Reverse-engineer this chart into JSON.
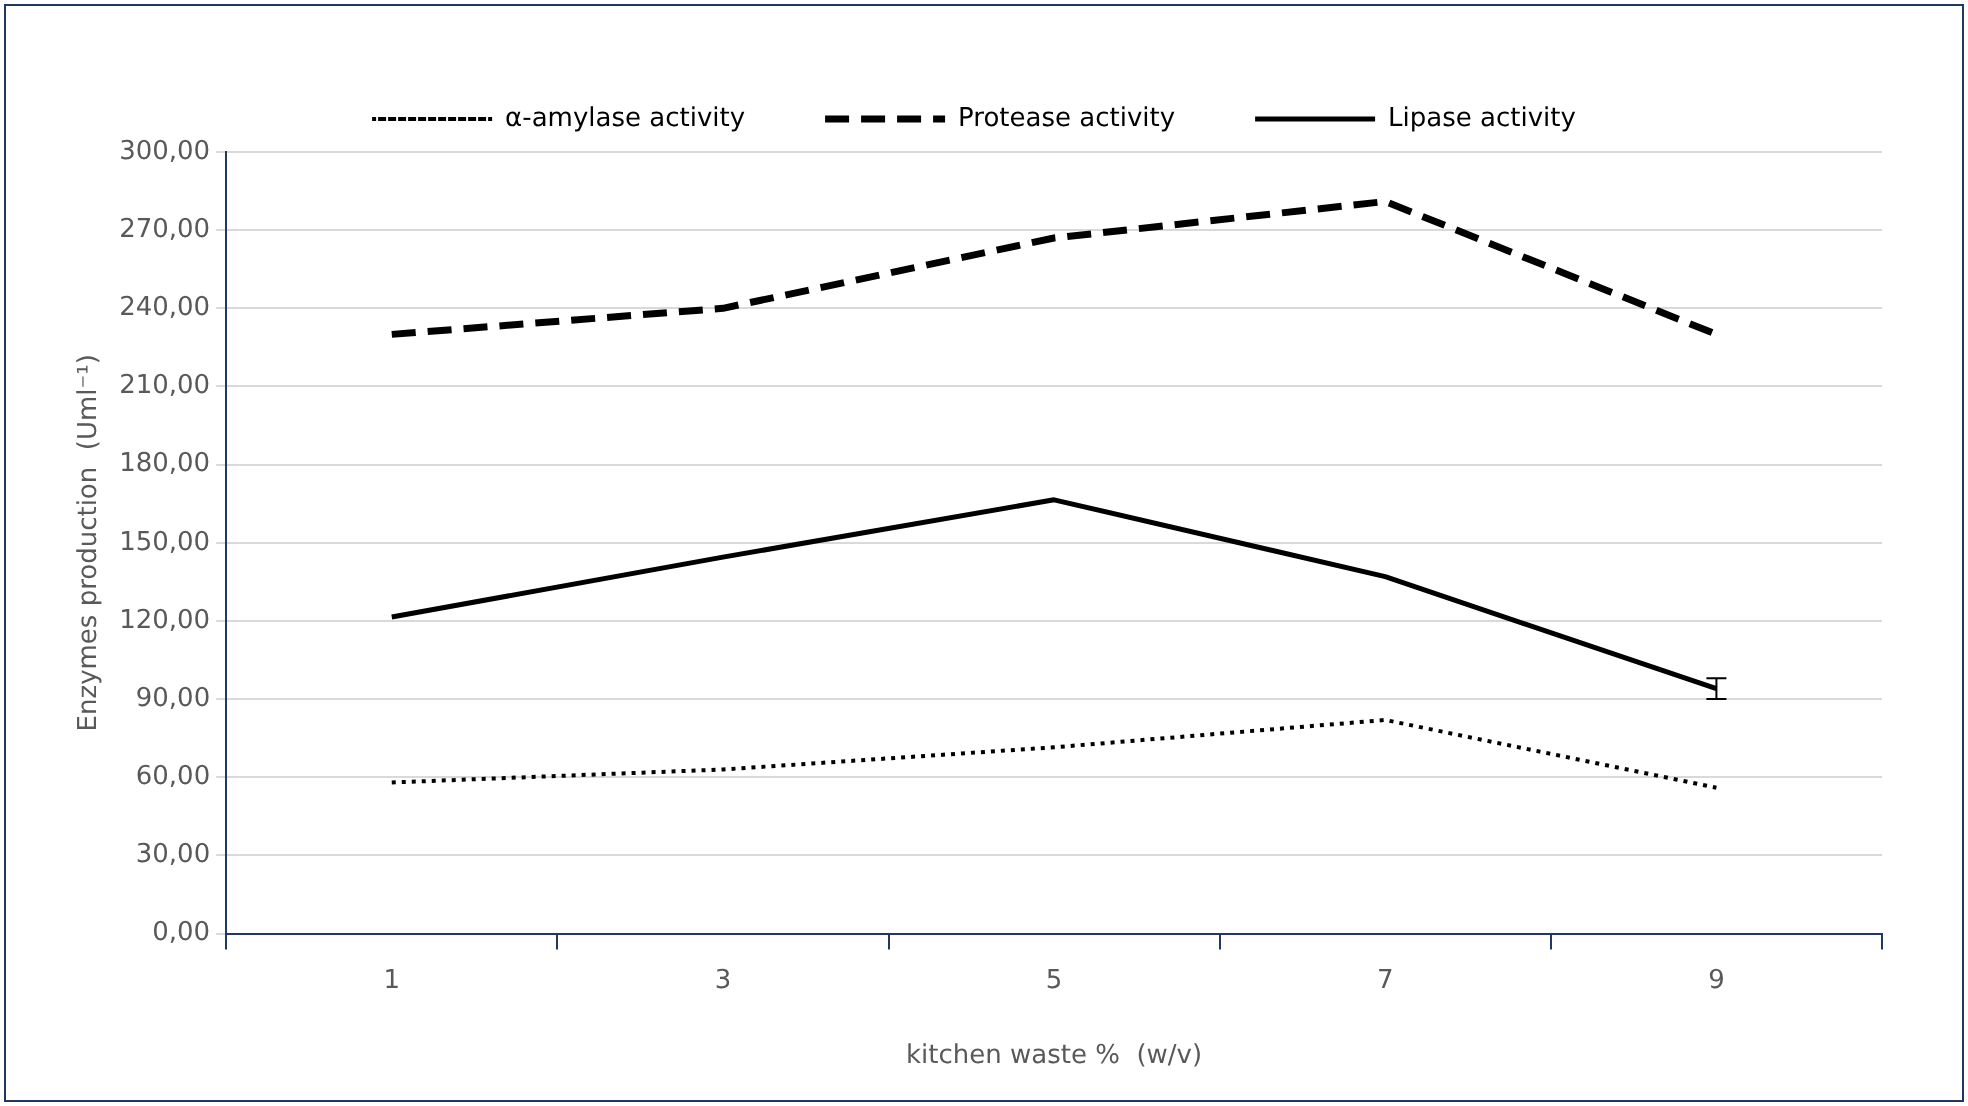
{
  "chart_data": {
    "type": "line",
    "xlabel": "kitchen waste %  (w/v)",
    "ylabel": "Enzymes production  (Uml⁻¹)",
    "categories": [
      "1",
      "3",
      "5",
      "7",
      "9"
    ],
    "series": [
      {
        "name": "α-amylase activity",
        "color": "#000000",
        "line_style": "dotted",
        "values": [
          58,
          63,
          71.5,
          82,
          56
        ]
      },
      {
        "name": "Protease activity",
        "color": "#000000",
        "line_style": "dashed",
        "values": [
          230,
          240,
          267,
          281,
          230
        ]
      },
      {
        "name": "Lipase activity",
        "color": "#000000",
        "line_style": "solid",
        "values": [
          121.5,
          144.5,
          166.5,
          137,
          94
        ],
        "errors": [
          null,
          null,
          null,
          null,
          4
        ]
      }
    ],
    "ylim": [
      0,
      300
    ],
    "yticks": [
      {
        "value": 0,
        "label": "0,00"
      },
      {
        "value": 30,
        "label": "30,00"
      },
      {
        "value": 60,
        "label": "60,00"
      },
      {
        "value": 90,
        "label": "90,00"
      },
      {
        "value": 120,
        "label": "120,00"
      },
      {
        "value": 150,
        "label": "150,00"
      },
      {
        "value": 180,
        "label": "180,00"
      },
      {
        "value": 210,
        "label": "210,00"
      },
      {
        "value": 240,
        "label": "240,00"
      },
      {
        "value": 270,
        "label": "270,00"
      },
      {
        "value": 300,
        "label": "300,00"
      }
    ],
    "grid": "y",
    "legend": "top",
    "marker": "none"
  }
}
